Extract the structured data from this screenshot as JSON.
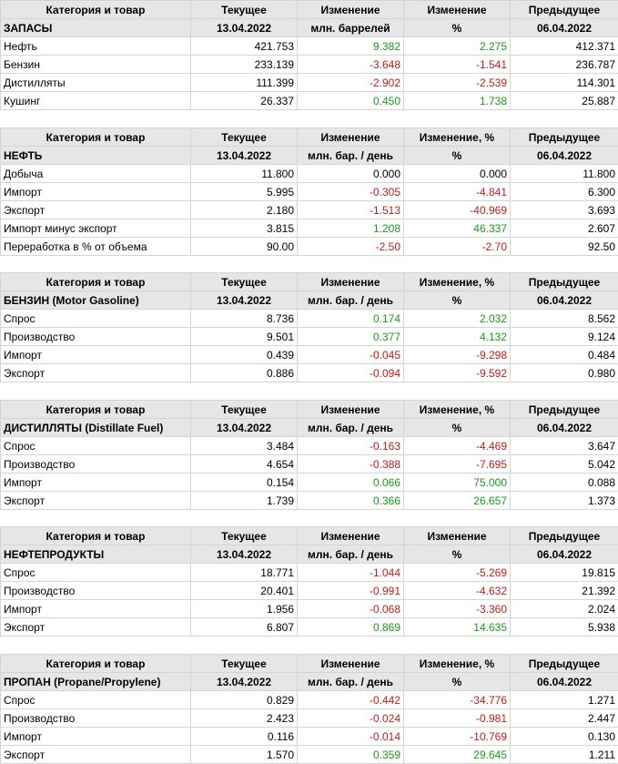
{
  "colors": {
    "positive": "#1a9a1a",
    "negative": "#c41a1a",
    "header_bg": "#e6e6e6"
  },
  "sections": [
    {
      "header1": [
        "Категория и товар",
        "Текущее",
        "Изменение",
        "Изменение",
        "Предыдущее"
      ],
      "header2": [
        "ЗАПАСЫ",
        "13.04.2022",
        "млн. баррелей",
        "%",
        "06.04.2022"
      ],
      "rows": [
        [
          "Нефть",
          "421.753",
          "9.382",
          "2.275",
          "412.371"
        ],
        [
          "Бензин",
          "233.139",
          "-3.648",
          "-1.541",
          "236.787"
        ],
        [
          "Дистилляты",
          "111.399",
          "-2.902",
          "-2.539",
          "114.301"
        ],
        [
          "Кушинг",
          "26.337",
          "0.450",
          "1.738",
          "25.887"
        ]
      ]
    },
    {
      "header1": [
        "Категория и товар",
        "Текущее",
        "Изменение",
        "Изменение, %",
        "Предыдущее"
      ],
      "header2": [
        "НЕФТЬ",
        "13.04.2022",
        "млн. бар. / день",
        "%",
        "06.04.2022"
      ],
      "rows": [
        [
          "Добыча",
          "11.800",
          "0.000",
          "0.000",
          "11.800"
        ],
        [
          "Импорт",
          "5.995",
          "-0.305",
          "-4.841",
          "6.300"
        ],
        [
          "Экспорт",
          "2.180",
          "-1.513",
          "-40.969",
          "3.693"
        ],
        [
          "Импорт минус экспорт",
          "3.815",
          "1.208",
          "46.337",
          "2.607"
        ],
        [
          "Переработка в % от объема",
          "90.00",
          "-2.50",
          "-2.70",
          "92.50"
        ]
      ]
    },
    {
      "header1": [
        "Категория и товар",
        "Текущее",
        "Изменение",
        "Изменение, %",
        "Предыдущее"
      ],
      "header2": [
        "БЕНЗИН (Motor Gasoline)",
        "13.04.2022",
        "млн. бар. / день",
        "%",
        "06.04.2022"
      ],
      "rows": [
        [
          "Спрос",
          "8.736",
          "0.174",
          "2.032",
          "8.562"
        ],
        [
          "Производство",
          "9.501",
          "0.377",
          "4.132",
          "9.124"
        ],
        [
          "Импорт",
          "0.439",
          "-0.045",
          "-9.298",
          "0.484"
        ],
        [
          "Экспорт",
          "0.886",
          "-0.094",
          "-9.592",
          "0.980"
        ]
      ]
    },
    {
      "header1": [
        "Категория и товар",
        "Текущее",
        "Изменение",
        "Изменение, %",
        "Предыдущее"
      ],
      "header2": [
        "ДИСТИЛЛЯТЫ (Distillate Fuel)",
        "13.04.2022",
        "млн. бар. / день",
        "%",
        "06.04.2022"
      ],
      "rows": [
        [
          "Спрос",
          "3.484",
          "-0.163",
          "-4.469",
          "3.647"
        ],
        [
          "Производство",
          "4.654",
          "-0.388",
          "-7.695",
          "5.042"
        ],
        [
          "Импорт",
          "0.154",
          "0.066",
          "75.000",
          "0.088"
        ],
        [
          "Экспорт",
          "1.739",
          "0.366",
          "26.657",
          "1.373"
        ]
      ]
    },
    {
      "header1": [
        "Категория и товар",
        "Текущее",
        "Изменение",
        "Изменение",
        "Предыдущее"
      ],
      "header2": [
        "НЕФТЕПРОДУКТЫ",
        "13.04.2022",
        "млн. бар. / день",
        "%",
        "06.04.2022"
      ],
      "rows": [
        [
          "Спрос",
          "18.771",
          "-1.044",
          "-5.269",
          "19.815"
        ],
        [
          "Производство",
          "20.401",
          "-0.991",
          "-4.632",
          "21.392"
        ],
        [
          "Импорт",
          "1.956",
          "-0.068",
          "-3.360",
          "2.024"
        ],
        [
          "Экспорт",
          "6.807",
          "0.869",
          "14.635",
          "5.938"
        ]
      ]
    },
    {
      "header1": [
        "Категория и товар",
        "Текущее",
        "Изменение",
        "Изменение, %",
        "Предыдущее"
      ],
      "header2": [
        "ПРОПАН (Propane/Propylene)",
        "13.04.2022",
        "млн. бар. / день",
        "%",
        "06.04.2022"
      ],
      "rows": [
        [
          "Спрос",
          "0.829",
          "-0.442",
          "-34.776",
          "1.271"
        ],
        [
          "Производство",
          "2.423",
          "-0.024",
          "-0.981",
          "2.447"
        ],
        [
          "Импорт",
          "0.116",
          "-0.014",
          "-10.769",
          "0.130"
        ],
        [
          "Экспорт",
          "1.570",
          "0.359",
          "29.645",
          "1.211"
        ]
      ]
    }
  ]
}
